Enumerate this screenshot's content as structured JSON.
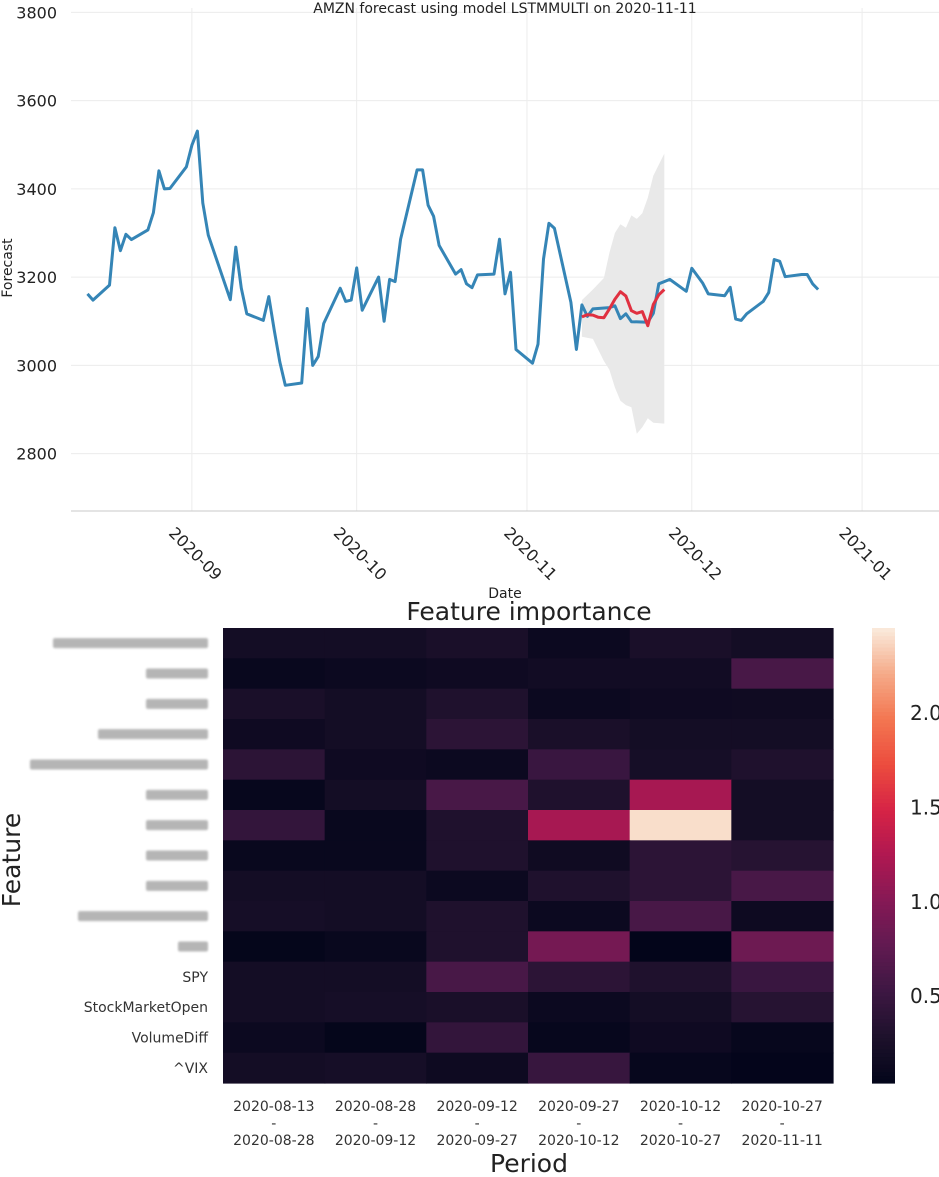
{
  "chart_data": [
    {
      "type": "line",
      "title": "AMZN forecast using model LSTMMULTI on 2020-11-11",
      "xlabel": "Date",
      "ylabel": "Forecast",
      "ylim": [
        2670,
        3810
      ],
      "xlim": [
        "2020-08-10",
        "2021-01-15"
      ],
      "x_ticks": [
        "2020-09",
        "2020-10",
        "2020-11",
        "2020-12",
        "2021-01"
      ],
      "y_ticks": [
        2800,
        3000,
        3200,
        3400,
        3600,
        3800
      ],
      "grid": true,
      "series": [
        {
          "color": "#3585b6",
          "points": [
            [
              "2020-08-13",
              3162
            ],
            [
              "2020-08-14",
              3148
            ],
            [
              "2020-08-17",
              3182
            ],
            [
              "2020-08-18",
              3312
            ],
            [
              "2020-08-19",
              3260
            ],
            [
              "2020-08-20",
              3297
            ],
            [
              "2020-08-21",
              3285
            ],
            [
              "2020-08-24",
              3307
            ],
            [
              "2020-08-25",
              3346
            ],
            [
              "2020-08-26",
              3441
            ],
            [
              "2020-08-27",
              3400
            ],
            [
              "2020-08-28",
              3401
            ],
            [
              "2020-08-31",
              3450
            ],
            [
              "2020-09-01",
              3499
            ],
            [
              "2020-09-02",
              3531
            ],
            [
              "2020-09-03",
              3368
            ],
            [
              "2020-09-04",
              3295
            ],
            [
              "2020-09-08",
              3149
            ],
            [
              "2020-09-09",
              3268
            ],
            [
              "2020-09-10",
              3175
            ],
            [
              "2020-09-11",
              3117
            ],
            [
              "2020-09-14",
              3102
            ],
            [
              "2020-09-15",
              3156
            ],
            [
              "2020-09-16",
              3079
            ],
            [
              "2020-09-17",
              3008
            ],
            [
              "2020-09-18",
              2955
            ],
            [
              "2020-09-21",
              2960
            ],
            [
              "2020-09-22",
              3129
            ],
            [
              "2020-09-23",
              3000
            ],
            [
              "2020-09-24",
              3020
            ],
            [
              "2020-09-25",
              3095
            ],
            [
              "2020-09-28",
              3175
            ],
            [
              "2020-09-29",
              3145
            ],
            [
              "2020-09-30",
              3148
            ],
            [
              "2020-10-01",
              3221
            ],
            [
              "2020-10-02",
              3125
            ],
            [
              "2020-10-05",
              3200
            ],
            [
              "2020-10-06",
              3100
            ],
            [
              "2020-10-07",
              3195
            ],
            [
              "2020-10-08",
              3190
            ],
            [
              "2020-10-09",
              3286
            ],
            [
              "2020-10-12",
              3443
            ],
            [
              "2020-10-13",
              3443
            ],
            [
              "2020-10-14",
              3363
            ],
            [
              "2020-10-15",
              3338
            ],
            [
              "2020-10-16",
              3272
            ],
            [
              "2020-10-19",
              3207
            ],
            [
              "2020-10-20",
              3217
            ],
            [
              "2020-10-21",
              3185
            ],
            [
              "2020-10-22",
              3176
            ],
            [
              "2020-10-23",
              3205
            ],
            [
              "2020-10-26",
              3207
            ],
            [
              "2020-10-27",
              3286
            ],
            [
              "2020-10-28",
              3162
            ],
            [
              "2020-10-29",
              3211
            ],
            [
              "2020-10-30",
              3036
            ],
            [
              "2020-11-02",
              3005
            ],
            [
              "2020-11-03",
              3048
            ],
            [
              "2020-11-04",
              3241
            ],
            [
              "2020-11-05",
              3322
            ],
            [
              "2020-11-06",
              3311
            ],
            [
              "2020-11-09",
              3143
            ],
            [
              "2020-11-10",
              3036
            ],
            [
              "2020-11-11",
              3137
            ],
            [
              "2020-11-12",
              3111
            ],
            [
              "2020-11-13",
              3128
            ],
            [
              "2020-11-16",
              3131
            ],
            [
              "2020-11-17",
              3135
            ],
            [
              "2020-11-18",
              3106
            ],
            [
              "2020-11-19",
              3117
            ],
            [
              "2020-11-20",
              3099
            ],
            [
              "2020-11-23",
              3098
            ],
            [
              "2020-11-24",
              3118
            ],
            [
              "2020-11-25",
              3185
            ],
            [
              "2020-11-27",
              3195
            ],
            [
              "2020-11-30",
              3168
            ],
            [
              "2020-12-01",
              3220
            ],
            [
              "2020-12-02",
              3203
            ],
            [
              "2020-12-03",
              3186
            ],
            [
              "2020-12-04",
              3162
            ],
            [
              "2020-12-07",
              3158
            ],
            [
              "2020-12-08",
              3177
            ],
            [
              "2020-12-09",
              3105
            ],
            [
              "2020-12-10",
              3102
            ],
            [
              "2020-12-11",
              3117
            ],
            [
              "2020-12-14",
              3145
            ],
            [
              "2020-12-15",
              3165
            ],
            [
              "2020-12-16",
              3240
            ],
            [
              "2020-12-17",
              3236
            ],
            [
              "2020-12-18",
              3201
            ],
            [
              "2020-12-21",
              3206
            ],
            [
              "2020-12-22",
              3206
            ],
            [
              "2020-12-23",
              3185
            ],
            [
              "2020-12-24",
              3172
            ]
          ]
        },
        {
          "color": "#e03040",
          "points": [
            [
              "2020-11-11",
              3110
            ],
            [
              "2020-11-12",
              3115
            ],
            [
              "2020-11-13",
              3114
            ],
            [
              "2020-11-14",
              3109
            ],
            [
              "2020-11-15",
              3108
            ],
            [
              "2020-11-16",
              3128
            ],
            [
              "2020-11-17",
              3150
            ],
            [
              "2020-11-18",
              3167
            ],
            [
              "2020-11-19",
              3157
            ],
            [
              "2020-11-20",
              3124
            ],
            [
              "2020-11-21",
              3118
            ],
            [
              "2020-11-22",
              3122
            ],
            [
              "2020-11-23",
              3090
            ],
            [
              "2020-11-24",
              3138
            ],
            [
              "2020-11-25",
              3160
            ],
            [
              "2020-11-26",
              3172
            ]
          ]
        }
      ],
      "band": {
        "color": "#e9e9e9",
        "upper": [
          [
            "2020-11-11",
            3148
          ],
          [
            "2020-11-13",
            3172
          ],
          [
            "2020-11-15",
            3198
          ],
          [
            "2020-11-16",
            3255
          ],
          [
            "2020-11-17",
            3300
          ],
          [
            "2020-11-18",
            3320
          ],
          [
            "2020-11-19",
            3312
          ],
          [
            "2020-11-20",
            3340
          ],
          [
            "2020-11-21",
            3332
          ],
          [
            "2020-11-22",
            3345
          ],
          [
            "2020-11-23",
            3380
          ],
          [
            "2020-11-24",
            3430
          ],
          [
            "2020-11-26",
            3480
          ]
        ],
        "lower": [
          [
            "2020-11-11",
            3065
          ],
          [
            "2020-11-13",
            3060
          ],
          [
            "2020-11-15",
            3010
          ],
          [
            "2020-11-16",
            2990
          ],
          [
            "2020-11-17",
            2950
          ],
          [
            "2020-11-18",
            2920
          ],
          [
            "2020-11-19",
            2910
          ],
          [
            "2020-11-20",
            2905
          ],
          [
            "2020-11-21",
            2845
          ],
          [
            "2020-11-22",
            2860
          ],
          [
            "2020-11-23",
            2880
          ],
          [
            "2020-11-24",
            2870
          ],
          [
            "2020-11-26",
            2868
          ]
        ]
      }
    },
    {
      "type": "heatmap",
      "title": "Feature importance",
      "xlabel": "Period",
      "ylabel": "Feature",
      "columns": [
        [
          "2020-08-13",
          "-",
          "2020-08-28"
        ],
        [
          "2020-08-28",
          "-",
          "2020-09-12"
        ],
        [
          "2020-09-12",
          "-",
          "2020-09-27"
        ],
        [
          "2020-09-27",
          "-",
          "2020-10-12"
        ],
        [
          "2020-10-12",
          "-",
          "2020-10-27"
        ],
        [
          "2020-10-27",
          "-",
          "2020-11-11"
        ]
      ],
      "rows": [
        "",
        "",
        "",
        "",
        "",
        "",
        "",
        "",
        "",
        "",
        "",
        "SPY",
        "StockMarketOpen",
        "VolumeDiff",
        "^VIX"
      ],
      "values": [
        [
          0.2,
          0.2,
          0.25,
          0.12,
          0.25,
          0.2
        ],
        [
          0.1,
          0.12,
          0.15,
          0.18,
          0.18,
          0.6
        ],
        [
          0.25,
          0.2,
          0.3,
          0.12,
          0.15,
          0.16
        ],
        [
          0.15,
          0.2,
          0.4,
          0.25,
          0.2,
          0.2
        ],
        [
          0.4,
          0.15,
          0.12,
          0.5,
          0.22,
          0.3
        ],
        [
          0.08,
          0.2,
          0.6,
          0.3,
          1.2,
          0.2
        ],
        [
          0.45,
          0.1,
          0.3,
          1.2,
          2.4,
          0.2
        ],
        [
          0.1,
          0.1,
          0.3,
          0.16,
          0.4,
          0.35
        ],
        [
          0.2,
          0.2,
          0.12,
          0.3,
          0.4,
          0.6
        ],
        [
          0.22,
          0.2,
          0.3,
          0.12,
          0.6,
          0.14
        ],
        [
          0.06,
          0.1,
          0.3,
          0.9,
          0.04,
          0.85
        ],
        [
          0.2,
          0.2,
          0.6,
          0.4,
          0.3,
          0.5
        ],
        [
          0.2,
          0.22,
          0.25,
          0.12,
          0.2,
          0.35
        ],
        [
          0.12,
          0.06,
          0.45,
          0.08,
          0.15,
          0.08
        ],
        [
          0.2,
          0.22,
          0.14,
          0.48,
          0.08,
          0.05
        ]
      ],
      "colorbar": {
        "vmin": 0.04,
        "vmax": 2.45,
        "ticks": [
          "0.5",
          "1.0",
          "1.5",
          "2.0"
        ]
      }
    }
  ]
}
